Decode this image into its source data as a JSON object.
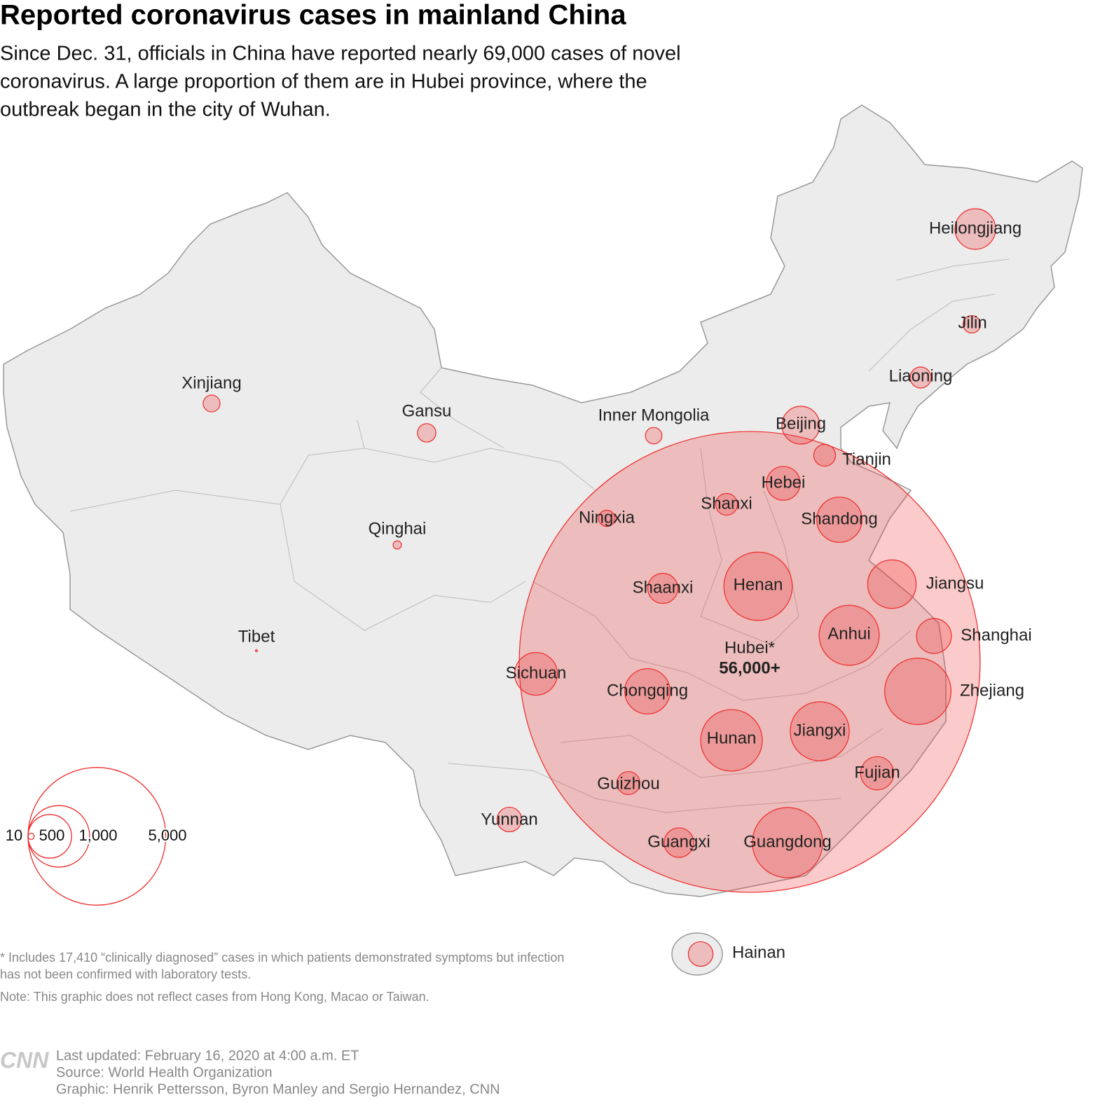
{
  "header": {
    "title": "Reported coronavirus cases in mainland China",
    "subtitle": [
      "Since Dec. 31, officials in China have reported nearly 69,000 cases of novel",
      "coronavirus. A large proportion of them are in Hubei province, where the",
      "outbreak began in the city of Wuhan."
    ]
  },
  "chart_data": {
    "type": "bubble-map",
    "color": "#ee2a2a",
    "categories": [
      "Heilongjiang",
      "Jilin",
      "Liaoning",
      "Beijing",
      "Tianjin",
      "Hebei",
      "Shanxi",
      "Shandong",
      "Ningxia",
      "Inner Mongolia",
      "Gansu",
      "Xinjiang",
      "Qinghai",
      "Tibet",
      "Shaanxi",
      "Henan",
      "Jiangsu",
      "Anhui",
      "Shanghai",
      "Zhejiang",
      "Sichuan",
      "Chongqing",
      "Hunan",
      "Jiangxi",
      "Fujian",
      "Guizhou",
      "Yunnan",
      "Guangxi",
      "Guangdong",
      "Hainan",
      "Hubei*"
    ],
    "values": [
      435,
      80,
      116,
      377,
      125,
      300,
      125,
      540,
      70,
      72,
      90,
      75,
      18,
      1,
      240,
      1231,
      620,
      950,
      320,
      1160,
      480,
      540,
      1000,
      920,
      290,
      140,
      160,
      230,
      1300,
      160,
      56000
    ],
    "value_labels": [
      null,
      null,
      null,
      null,
      null,
      null,
      null,
      null,
      null,
      null,
      null,
      null,
      null,
      null,
      null,
      null,
      null,
      null,
      null,
      null,
      null,
      null,
      null,
      null,
      null,
      null,
      null,
      null,
      null,
      null,
      "56,000+"
    ],
    "legend": [
      10,
      500,
      {
        "value": 1000,
        "label": "1,000"
      },
      {
        "value": 5000,
        "label": "5,000"
      }
    ]
  },
  "notes": [
    "* Includes 17,410 “clinically diagnosed” cases in which patients demonstrated symptoms but infection",
    "has not been confirmed with laboratory tests.",
    "Note: This graphic does not reflect cases from Hong Kong, Macao or Taiwan."
  ],
  "footer": {
    "logo": "CNN",
    "lines": [
      "Last updated: February 16, 2020 at 4:00 a.m. ET",
      "Source: World Health Organization",
      "Graphic: Henrik Pettersson, Byron Manley and Sergio Hernandez, CNN"
    ]
  }
}
